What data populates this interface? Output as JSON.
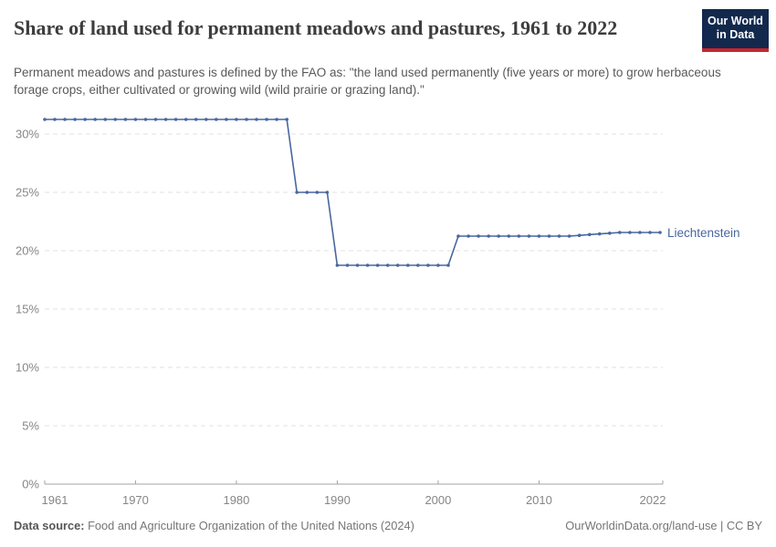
{
  "header": {
    "title": "Share of land used for permanent meadows and pastures, 1961 to 2022",
    "subtitle": "Permanent meadows and pastures is defined by the FAO as: \"the land used permanently (five years or more) to grow herbaceous forage crops, either cultivated or growing wild (wild prairie or grazing land).\"",
    "logo": {
      "line1": "Our World",
      "line2": "in Data",
      "bg_color": "#12294d",
      "accent_color": "#c9252d"
    }
  },
  "chart_data": {
    "type": "line",
    "title": "Share of land used for permanent meadows and pastures, 1961 to 2022",
    "xlabel": "",
    "ylabel": "",
    "xlim": [
      1961,
      2022
    ],
    "ylim": [
      0,
      33
    ],
    "grid": "horizontal-dashed",
    "legend_position": "end-of-line-label",
    "x_ticks": [
      1961,
      1970,
      1980,
      1990,
      2000,
      2010,
      2022
    ],
    "y_ticks": [
      0,
      5,
      10,
      15,
      20,
      25,
      30
    ],
    "y_tick_suffix": "%",
    "series": [
      {
        "name": "Liechtenstein",
        "color": "#48679f",
        "x": [
          1961,
          1962,
          1963,
          1964,
          1965,
          1966,
          1967,
          1968,
          1969,
          1970,
          1971,
          1972,
          1973,
          1974,
          1975,
          1976,
          1977,
          1978,
          1979,
          1980,
          1981,
          1982,
          1983,
          1984,
          1985,
          1986,
          1987,
          1988,
          1989,
          1990,
          1991,
          1992,
          1993,
          1994,
          1995,
          1996,
          1997,
          1998,
          1999,
          2000,
          2001,
          2002,
          2003,
          2004,
          2005,
          2006,
          2007,
          2008,
          2009,
          2010,
          2011,
          2012,
          2013,
          2014,
          2015,
          2016,
          2017,
          2018,
          2019,
          2020,
          2021,
          2022
        ],
        "values": [
          31.25,
          31.25,
          31.25,
          31.25,
          31.25,
          31.25,
          31.25,
          31.25,
          31.25,
          31.25,
          31.25,
          31.25,
          31.25,
          31.25,
          31.25,
          31.25,
          31.25,
          31.25,
          31.25,
          31.25,
          31.25,
          31.25,
          31.25,
          31.25,
          31.25,
          25,
          25,
          25,
          25,
          18.75,
          18.75,
          18.75,
          18.75,
          18.75,
          18.75,
          18.75,
          18.75,
          18.75,
          18.75,
          18.75,
          18.75,
          21.25,
          21.25,
          21.25,
          21.25,
          21.25,
          21.25,
          21.25,
          21.25,
          21.25,
          21.25,
          21.25,
          21.25,
          21.31,
          21.38,
          21.44,
          21.5,
          21.56,
          21.56,
          21.56,
          21.56,
          21.56
        ]
      }
    ]
  },
  "footer": {
    "source_label": "Data source:",
    "source_text": "Food and Agriculture Organization of the United Nations (2024)",
    "rights": "OurWorldinData.org/land-use | CC BY"
  }
}
